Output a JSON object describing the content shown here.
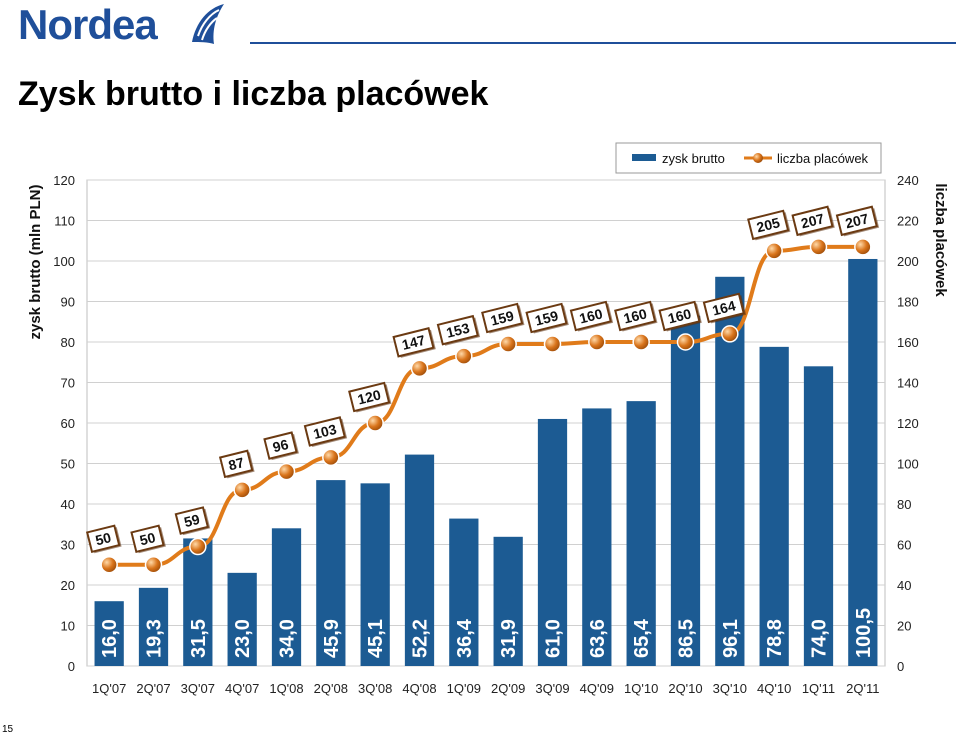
{
  "header": {
    "logo_text": "Nordea",
    "title": "Zysk brutto i liczba placówek"
  },
  "footer": {
    "page_number": "15"
  },
  "colors": {
    "bar": "#1c5b93",
    "line": "#e07b1a",
    "marker": "#d9741b",
    "brand": "#1f4f9a"
  },
  "icons": {
    "logo_mark": "sail-icon"
  },
  "chart_data": {
    "type": "bar",
    "categories": [
      "1Q'07",
      "2Q'07",
      "3Q'07",
      "4Q'07",
      "1Q'08",
      "2Q'08",
      "3Q'08",
      "4Q'08",
      "1Q'09",
      "2Q'09",
      "3Q'09",
      "4Q'09",
      "1Q'10",
      "2Q'10",
      "3Q'10",
      "4Q'10",
      "1Q'11",
      "2Q'11"
    ],
    "series": [
      {
        "name": "zysk brutto",
        "kind": "bar",
        "axis": "left",
        "values": [
          16.0,
          19.3,
          31.5,
          23.0,
          34.0,
          45.9,
          45.1,
          52.2,
          36.4,
          31.9,
          61.0,
          63.6,
          65.4,
          86.5,
          96.1,
          78.8,
          74.0,
          100.5
        ],
        "labels": [
          "16,0",
          "19,3",
          "31,5",
          "23,0",
          "34,0",
          "45,9",
          "45,1",
          "52,2",
          "36,4",
          "31,9",
          "61,0",
          "63,6",
          "65,4",
          "86,5",
          "96,1",
          "78,8",
          "74,0",
          "100,5"
        ]
      },
      {
        "name": "liczba placówek",
        "kind": "line",
        "axis": "right",
        "values": [
          50,
          50,
          59,
          87,
          96,
          103,
          120,
          147,
          153,
          159,
          159,
          160,
          160,
          160,
          164,
          205,
          207,
          207
        ],
        "labels": [
          "50",
          "50",
          "59",
          "87",
          "96",
          "103",
          "120",
          "147",
          "153",
          "159",
          "159",
          "160",
          "160",
          "160",
          "164",
          "205",
          "207",
          "207"
        ]
      }
    ],
    "ylabel": "zysk brutto (mln PLN)",
    "y2label": "liczba placówek",
    "ylim": [
      0,
      120
    ],
    "y2lim": [
      0,
      240
    ],
    "yticks": [
      "0",
      "10",
      "20",
      "30",
      "40",
      "50",
      "60",
      "70",
      "80",
      "90",
      "100",
      "110",
      "120"
    ],
    "y2ticks": [
      "0",
      "20",
      "40",
      "60",
      "80",
      "100",
      "120",
      "140",
      "160",
      "180",
      "200",
      "220",
      "240"
    ],
    "grid": true,
    "legend": "top-right"
  }
}
